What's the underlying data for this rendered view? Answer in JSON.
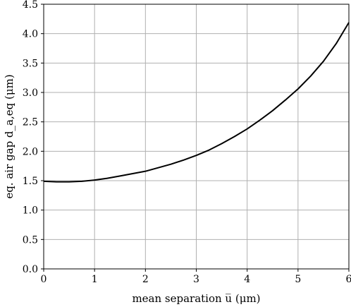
{
  "chart_data": {
    "type": "line",
    "xlabel": "mean separation u̅ (μm)",
    "ylabel": "eq. air gap d_a,eq (μm)",
    "xlim": [
      0,
      6
    ],
    "ylim": [
      0,
      4.5
    ],
    "xticks": [
      "0",
      "1",
      "2",
      "3",
      "4",
      "5",
      "6"
    ],
    "yticks": [
      "0.0",
      "0.5",
      "1.0",
      "1.5",
      "2.0",
      "2.5",
      "3.0",
      "3.5",
      "4.0",
      "4.5"
    ],
    "grid": true,
    "series": [
      {
        "color": "#000000",
        "x": [
          0,
          0.25,
          0.5,
          0.75,
          1.0,
          1.25,
          1.5,
          1.75,
          2.0,
          2.25,
          2.5,
          2.75,
          3.0,
          3.25,
          3.5,
          3.75,
          4.0,
          4.25,
          4.5,
          4.75,
          5.0,
          5.25,
          5.5,
          5.75,
          6.0
        ],
        "y": [
          1.49,
          1.48,
          1.48,
          1.49,
          1.51,
          1.54,
          1.58,
          1.62,
          1.66,
          1.72,
          1.78,
          1.85,
          1.93,
          2.02,
          2.13,
          2.25,
          2.38,
          2.53,
          2.69,
          2.87,
          3.06,
          3.28,
          3.53,
          3.83,
          4.19
        ]
      }
    ]
  }
}
